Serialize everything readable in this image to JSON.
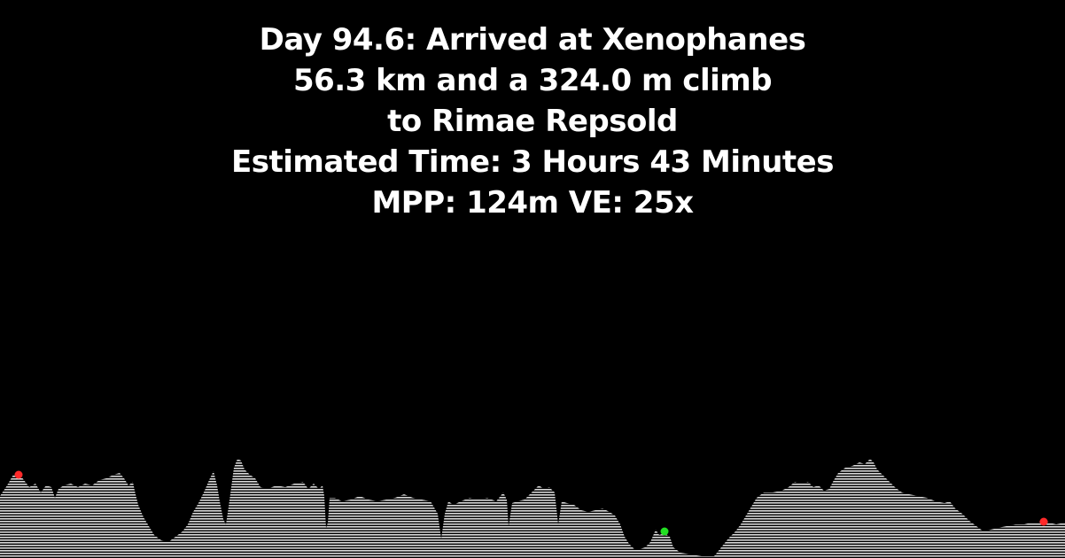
{
  "header": {
    "line1": "Day 94.6: Arrived at Xenophanes",
    "line2": "56.3 km and a 324.0 m climb",
    "line3": "to Rimae Repsold",
    "line4": "Estimated Time: 3 Hours 43 Minutes",
    "line5": "MPP: 124m VE: 25x"
  },
  "colors": {
    "background": "#000000",
    "text": "#ffffff",
    "terrain_fill": "#d8d8d8",
    "marker_start": "#ff2a2a",
    "marker_end": "#ff2a2a",
    "marker_current": "#22e022"
  }
}
